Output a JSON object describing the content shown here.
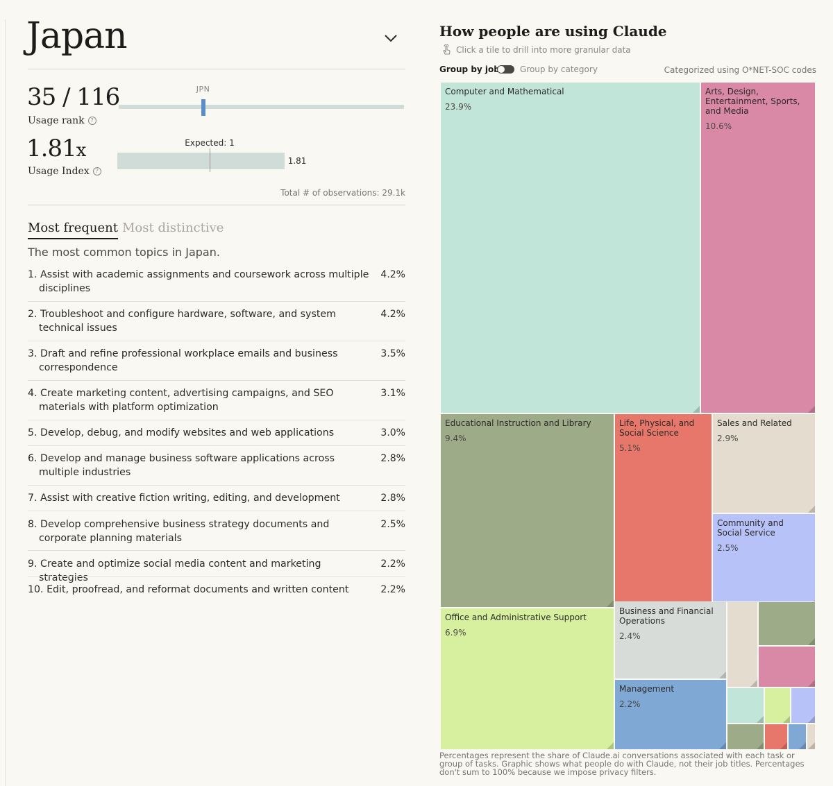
{
  "country": "Japan",
  "rank": {
    "value": "35 / 116",
    "label": "Usage rank",
    "position": 35,
    "total": 116,
    "marker_label": "JPN"
  },
  "usage_index": {
    "value": "1.81",
    "suffix": "x",
    "label": "Usage Index",
    "expected_label": "Expected: 1",
    "bar_value": "1.81",
    "index": 1.81,
    "expected": 1
  },
  "observations": "Total # of observations: 29.1k",
  "tabs": {
    "frequent": "Most frequent",
    "distinctive": "Most distinctive"
  },
  "topics_subtitle": "The most common topics in Japan.",
  "tasks": [
    {
      "text": "1. Assist with academic assignments and coursework across multiple disciplines",
      "pct": "4.2%"
    },
    {
      "text": "2. Troubleshoot and configure hardware, software, and system technical issues",
      "pct": "4.2%"
    },
    {
      "text": "3. Draft and refine professional workplace emails and business correspondence",
      "pct": "3.5%"
    },
    {
      "text": "4. Create marketing content, advertising campaigns, and SEO materials with platform optimization",
      "pct": "3.1%"
    },
    {
      "text": "5. Develop, debug, and modify websites and web applications",
      "pct": "3.0%"
    },
    {
      "text": "6. Develop and manage business software applications across multiple industries",
      "pct": "2.8%"
    },
    {
      "text": "7. Assist with creative fiction writing, editing, and development",
      "pct": "2.8%"
    },
    {
      "text": "8. Develop comprehensive business strategy documents and corporate planning materials",
      "pct": "2.5%"
    },
    {
      "text": "9. Create and optimize social media content and marketing strategies",
      "pct": "2.2%"
    },
    {
      "text": "10. Edit, proofread, and reformat documents and written content",
      "pct": "2.2%"
    }
  ],
  "chart": {
    "title": "How people are using Claude",
    "drill_hint": "Click a tile to drill into more granular data",
    "group_by_job": "Group by job",
    "group_by_category": "Group by category",
    "categorized_note": "Categorized using O*NET-SOC codes",
    "footnote": "Percentages represent the share of Claude.ai conversations associated with each task or group of tasks. Graphic shows what people do with Claude, not their job titles. Percentages don't sum to 100% because we impose privacy filters."
  },
  "chart_data": {
    "type": "treemap",
    "title": "How people are using Claude",
    "series": [
      {
        "name": "Computer and Mathematical",
        "pct_label": "23.9%",
        "value": 23.9,
        "color": "#c1e5d8"
      },
      {
        "name": "Arts, Design, Entertainment, Sports, and Media",
        "pct_label": "10.6%",
        "value": 10.6,
        "color": "#d988a5"
      },
      {
        "name": "Educational Instruction and Library",
        "pct_label": "9.4%",
        "value": 9.4,
        "color": "#9eab89"
      },
      {
        "name": "Life, Physical, and Social Science",
        "pct_label": "5.1%",
        "value": 5.1,
        "color": "#e7776a"
      },
      {
        "name": "Sales and Related",
        "pct_label": "2.9%",
        "value": 2.9,
        "color": "#e3dccf"
      },
      {
        "name": "Community and Social Service",
        "pct_label": "2.5%",
        "value": 2.5,
        "color": "#b7c2f8"
      },
      {
        "name": "Office and Administrative Support",
        "pct_label": "6.9%",
        "value": 6.9,
        "color": "#d7f09f"
      },
      {
        "name": "Business and Financial Operations",
        "pct_label": "2.4%",
        "value": 2.4,
        "color": "#d8dcd9"
      },
      {
        "name": "Management",
        "pct_label": "2.2%",
        "value": 2.2,
        "color": "#7fa8d5"
      },
      {
        "name": "",
        "pct_label": "",
        "value": 1.0,
        "color": "#e3dccf"
      },
      {
        "name": "",
        "pct_label": "",
        "value": 1.0,
        "color": "#9eab89"
      },
      {
        "name": "",
        "pct_label": "",
        "value": 0.9,
        "color": "#d988a5"
      },
      {
        "name": "",
        "pct_label": "",
        "value": 0.6,
        "color": "#c1e5d8"
      },
      {
        "name": "",
        "pct_label": "",
        "value": 0.6,
        "color": "#d7f09f"
      },
      {
        "name": "",
        "pct_label": "",
        "value": 0.5,
        "color": "#b7c2f8"
      },
      {
        "name": "",
        "pct_label": "",
        "value": 0.5,
        "color": "#9eab89"
      },
      {
        "name": "",
        "pct_label": "",
        "value": 0.4,
        "color": "#e7776a"
      },
      {
        "name": "",
        "pct_label": "",
        "value": 0.3,
        "color": "#7fa8d5"
      },
      {
        "name": "",
        "pct_label": "",
        "value": 0.2,
        "color": "#e3dccf"
      }
    ]
  }
}
